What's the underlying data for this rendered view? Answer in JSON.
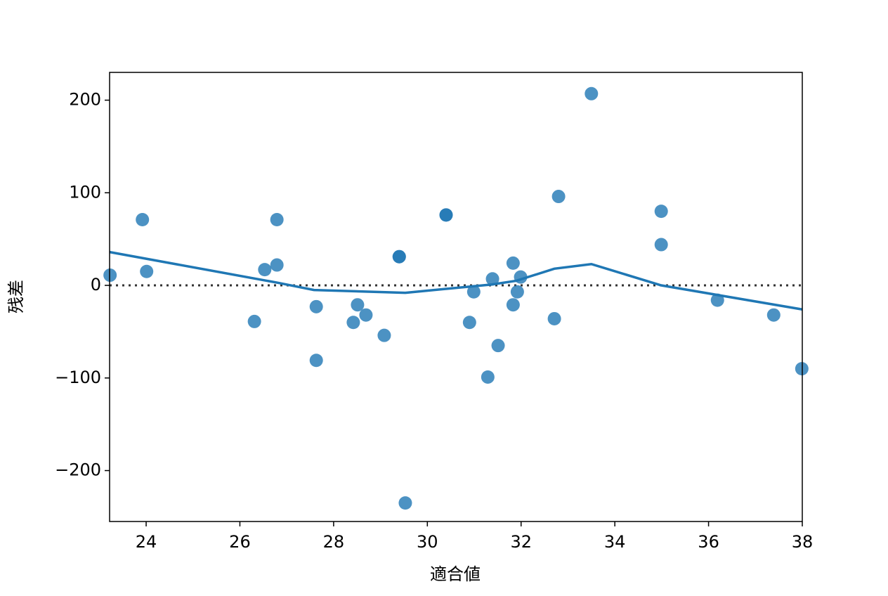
{
  "chart_data": {
    "type": "scatter",
    "xlabel": "適合値",
    "ylabel": "残差",
    "xlim": [
      23.22,
      38.0
    ],
    "ylim": [
      -255,
      230
    ],
    "xticks": [
      24,
      26,
      28,
      30,
      32,
      34,
      36,
      38
    ],
    "yticks": [
      {
        "value": -200,
        "label": "−200"
      },
      {
        "value": -100,
        "label": "−100"
      },
      0,
      100,
      200
    ],
    "hline": 0,
    "color": "#1f77b4",
    "x": [
      23.23,
      23.92,
      24.01,
      26.31,
      26.53,
      26.79,
      26.79,
      27.63,
      27.63,
      28.42,
      28.51,
      28.69,
      29.08,
      29.4,
      29.4,
      29.53,
      30.4,
      30.4,
      30.9,
      30.99,
      31.29,
      31.39,
      31.51,
      31.83,
      31.83,
      31.92,
      31.99,
      32.71,
      32.8,
      33.5,
      34.99,
      34.99,
      36.19,
      37.39,
      37.99
    ],
    "values": [
      11,
      71,
      15,
      -39,
      17,
      71,
      22,
      -23,
      -81,
      -40,
      -21,
      -32,
      -54,
      31,
      31,
      -235,
      76,
      76,
      -40,
      -7,
      -99,
      7,
      -65,
      24,
      -21,
      -7,
      9,
      -36,
      96,
      207,
      80,
      44,
      -16,
      -32,
      -90
    ],
    "lowess": {
      "x": [
        23.22,
        26.79,
        27.58,
        29.53,
        31.38,
        31.9,
        32.71,
        33.5,
        34.99,
        38.0
      ],
      "values": [
        36,
        3,
        -5,
        -8,
        1,
        5,
        18,
        23,
        0,
        -26
      ]
    }
  }
}
